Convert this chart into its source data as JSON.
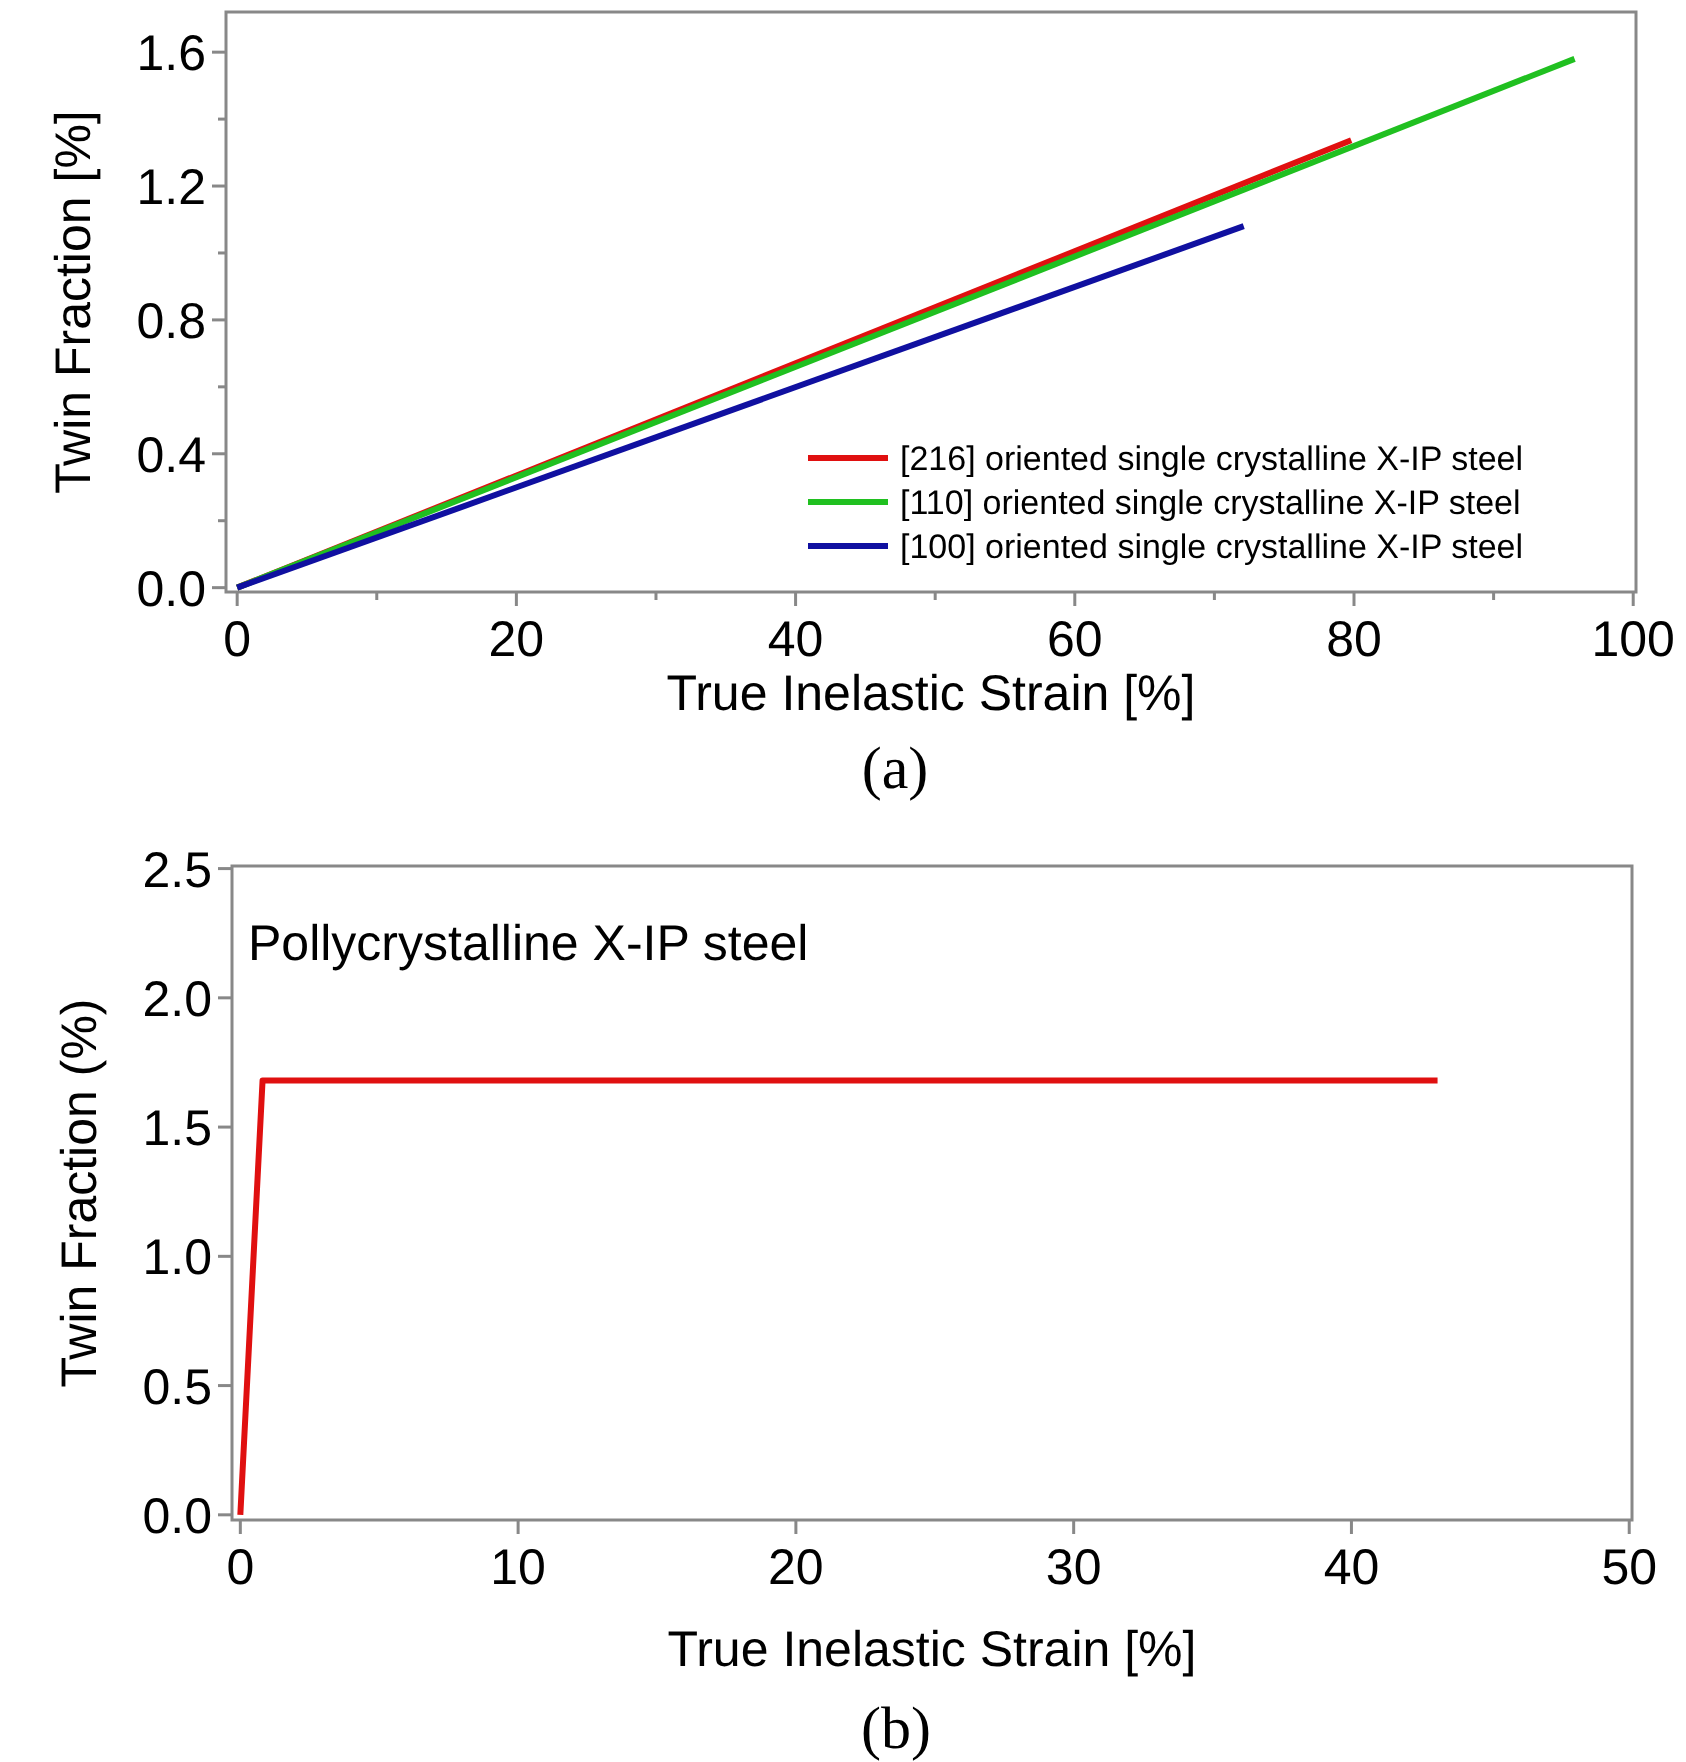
{
  "chart_data": [
    {
      "type": "line",
      "xlabel": "True Inelastic Strain [%]",
      "ylabel": "Twin Fraction [%]",
      "annotations": [
        "(a)"
      ],
      "xlim": [
        -0.8,
        100.2
      ],
      "ylim": [
        -0.013,
        1.72
      ],
      "xticks": [
        0,
        {
          "value": 10,
          "label": null
        },
        20,
        {
          "value": 30,
          "label": null
        },
        40,
        {
          "value": 50,
          "label": null
        },
        60,
        {
          "value": 70,
          "label": null
        },
        80,
        {
          "value": 90,
          "label": null
        },
        100
      ],
      "yticks": [
        {
          "value": 0,
          "label": "0.0"
        },
        {
          "value": 0.2,
          "label": null
        },
        {
          "value": 0.4,
          "label": "0.4"
        },
        {
          "value": 0.6,
          "label": null
        },
        {
          "value": 0.8,
          "label": "0.8"
        },
        {
          "value": 1.0,
          "label": null
        },
        {
          "value": 1.2,
          "label": "1.2"
        },
        {
          "value": 1.4,
          "label": null
        },
        {
          "value": 1.6,
          "label": "1.6"
        }
      ],
      "grid": false,
      "legend": "bottom right",
      "line_style": "solid",
      "marker": "none",
      "series": [
        {
          "name": "[216] oriented single crystalline X-IP steel",
          "color": "#e01010",
          "x": [
            0,
            79.8
          ],
          "values": [
            0,
            1.337
          ]
        },
        {
          "name": "[110] oriented single crystalline X-IP steel",
          "color": "#20c020",
          "x": [
            0,
            95.8
          ],
          "values": [
            0,
            1.58
          ]
        },
        {
          "name": "[100] oriented single crystalline X-IP steel",
          "color": "#1010a0",
          "x": [
            0,
            72.1
          ],
          "values": [
            0,
            1.08
          ]
        }
      ]
    },
    {
      "type": "line",
      "xlabel": "True Inelastic Strain [%]",
      "ylabel": "Twin Fraction (%)",
      "annotations": [
        "Pollycrystalline X-IP steel",
        "(b)"
      ],
      "xlim": [
        -0.3,
        50.1
      ],
      "ylim": [
        -0.02,
        2.51
      ],
      "xticks": [
        0,
        10,
        20,
        30,
        40,
        50
      ],
      "yticks": [
        {
          "value": 0,
          "label": "0.0"
        },
        {
          "value": 0.5,
          "label": "0.5"
        },
        {
          "value": 1,
          "label": "1.0"
        },
        {
          "value": 1.5,
          "label": "1.5"
        },
        {
          "value": 2,
          "label": "2.0"
        },
        {
          "value": 2.5,
          "label": "2.5"
        }
      ],
      "grid": false,
      "line_style": "solid",
      "marker": "none",
      "series": [
        {
          "color": "#e01010",
          "x": [
            0,
            0.8,
            43.1
          ],
          "values": [
            0,
            1.68,
            1.68
          ]
        }
      ]
    }
  ]
}
